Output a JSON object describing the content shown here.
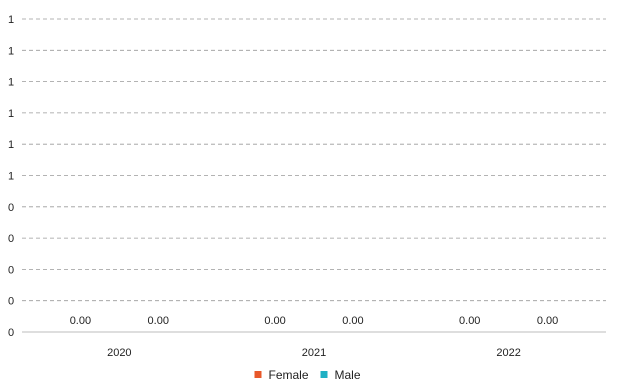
{
  "chart_data": {
    "type": "bar",
    "categories": [
      "2020",
      "2021",
      "2022"
    ],
    "series": [
      {
        "name": "Female",
        "values": [
          0,
          0,
          0
        ],
        "labels": [
          "0.00",
          "0.00",
          "0.00"
        ],
        "color": "#e8582a"
      },
      {
        "name": "Male",
        "values": [
          0,
          0,
          0
        ],
        "labels": [
          "0.00",
          "0.00",
          "0.00"
        ],
        "color": "#1fb0c4"
      }
    ],
    "y_tick_labels": [
      "0",
      "0",
      "0",
      "0",
      "0",
      "1",
      "1",
      "1",
      "1",
      "1",
      "1"
    ],
    "ylim": [
      0,
      1
    ],
    "grid": true,
    "legend_position": "bottom"
  }
}
